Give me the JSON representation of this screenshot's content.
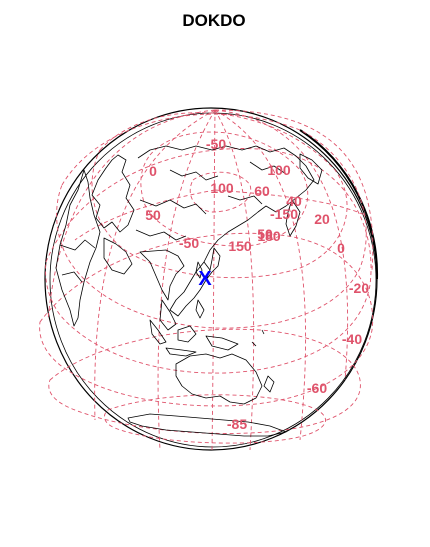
{
  "title": "DOKDO",
  "marker": {
    "label": "X",
    "color": "#0000ff"
  },
  "colors": {
    "graticule": "#df536b",
    "coastline": "#000000",
    "globe_outline": "#000000",
    "background": "#ffffff"
  },
  "grid_labels": [
    "-50",
    "0",
    "100",
    "50",
    "60",
    "-50",
    "40",
    "-150",
    "50",
    "20",
    "100",
    "150",
    "180",
    "0",
    "-20",
    "-40",
    "-60",
    "-85"
  ]
}
